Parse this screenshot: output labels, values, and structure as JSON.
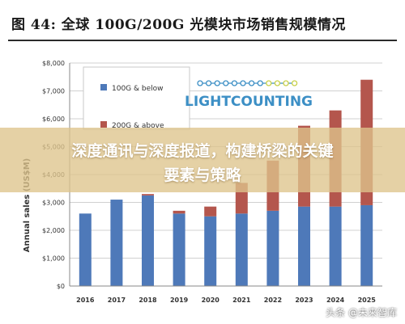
{
  "header": {
    "title": "图  44:  全球 100G/200G 光模块市场销售规模情况"
  },
  "banner": {
    "line1": "深度通讯与深度报道，构建桥梁的关键",
    "line2": "要素与策略"
  },
  "watermark": {
    "text": "头条 @未来智库"
  },
  "logo": {
    "text": "LIGHTCOUNTING"
  },
  "colors": {
    "series_1": "#4e79b9",
    "series_2": "#b4564d",
    "logo": "#3c8fc5",
    "logo_dots": "#c8d14a"
  },
  "chart_data": {
    "type": "bar",
    "stacked": true,
    "categories": [
      "2016",
      "2017",
      "2018",
      "2019",
      "2020",
      "2021",
      "2022",
      "2023",
      "2024",
      "2025"
    ],
    "series": [
      {
        "name": "100G & below",
        "values": [
          2600,
          3100,
          3250,
          2600,
          2500,
          2600,
          2700,
          2850,
          2850,
          2900
        ]
      },
      {
        "name": "200G & above",
        "values": [
          0,
          0,
          50,
          100,
          350,
          1100,
          1800,
          2900,
          3450,
          4500
        ]
      }
    ],
    "ylabel": "Annual sales (US$M)",
    "yticks": [
      "$0",
      "$1,000",
      "$2,000",
      "$3,000",
      "$4,000",
      "$5,000",
      "$6,000",
      "$7,000",
      "$8,000"
    ],
    "ylim": [
      0,
      8000
    ],
    "grid": true,
    "legend_position": "top-left"
  }
}
